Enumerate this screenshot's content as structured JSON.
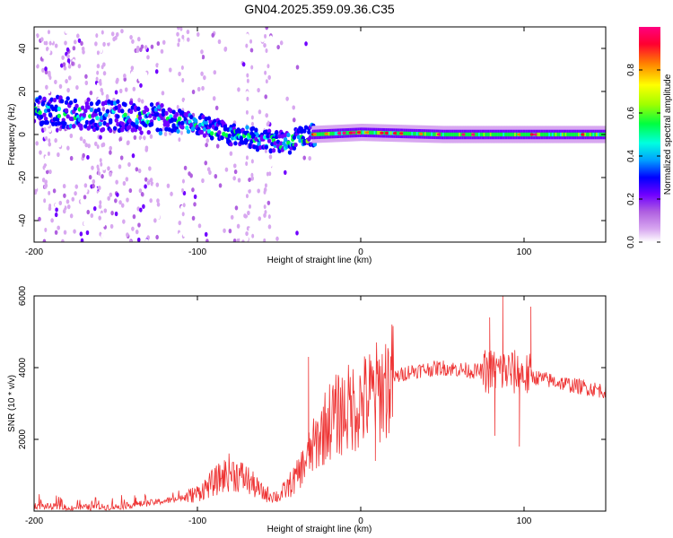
{
  "title": "GN04.2025.359.09.36.C35",
  "chart_data": [
    {
      "type": "heatmap",
      "name": "spectrogram",
      "xlabel": "Height of straight line (km)",
      "ylabel": "Frequency (Hz)",
      "xlim": [
        -200,
        150
      ],
      "ylim": [
        -50,
        50
      ],
      "xticks": [
        -200,
        -100,
        0,
        100
      ],
      "yticks": [
        -40,
        -20,
        0,
        20,
        40
      ],
      "colorbar": {
        "label": "Normalized spectral amplitude",
        "range": [
          0,
          1
        ],
        "ticks": [
          0.0,
          0.2,
          0.4,
          0.6,
          0.8
        ],
        "tick_labels": [
          "0.0",
          "0.2",
          "0.4",
          "0.6",
          "0.8"
        ],
        "colors": [
          "#ffffff",
          "#d8a8f0",
          "#b060e0",
          "#7000ff",
          "#0000ff",
          "#00a0ff",
          "#00ffe0",
          "#00ff40",
          "#a0ff00",
          "#ffff00",
          "#ff8000",
          "#ff0030",
          "#ff0080"
        ]
      },
      "ridge": [
        {
          "x": -200,
          "f": 12
        },
        {
          "x": -180,
          "f": 10
        },
        {
          "x": -160,
          "f": 9
        },
        {
          "x": -140,
          "f": 8
        },
        {
          "x": -120,
          "f": 7
        },
        {
          "x": -100,
          "f": 5
        },
        {
          "x": -80,
          "f": 0
        },
        {
          "x": -60,
          "f": -3
        },
        {
          "x": -45,
          "f": -4
        },
        {
          "x": -30,
          "f": 0
        },
        {
          "x": 0,
          "f": 1
        },
        {
          "x": 50,
          "f": 0
        },
        {
          "x": 100,
          "f": 0
        },
        {
          "x": 150,
          "f": 0
        }
      ]
    },
    {
      "type": "line",
      "name": "snr",
      "xlabel": "Height of straight line (km)",
      "ylabel": "SNR (10 * v/v)",
      "color": "#ee3333",
      "xlim": [
        -200,
        150
      ],
      "ylim": [
        0,
        6000
      ],
      "xticks": [
        -200,
        -100,
        0,
        100
      ],
      "yticks": [
        2000,
        4000,
        6000
      ],
      "envelope": [
        {
          "x": -200,
          "y": 150
        },
        {
          "x": -180,
          "y": 100
        },
        {
          "x": -150,
          "y": 120
        },
        {
          "x": -125,
          "y": 250
        },
        {
          "x": -110,
          "y": 350
        },
        {
          "x": -100,
          "y": 500
        },
        {
          "x": -90,
          "y": 800
        },
        {
          "x": -80,
          "y": 1100
        },
        {
          "x": -70,
          "y": 900
        },
        {
          "x": -60,
          "y": 500
        },
        {
          "x": -50,
          "y": 400
        },
        {
          "x": -40,
          "y": 900
        },
        {
          "x": -30,
          "y": 1700
        },
        {
          "x": -20,
          "y": 2500
        },
        {
          "x": -10,
          "y": 2800
        },
        {
          "x": 0,
          "y": 3000
        },
        {
          "x": 10,
          "y": 3300
        },
        {
          "x": 20,
          "y": 3700
        },
        {
          "x": 30,
          "y": 3900
        },
        {
          "x": 50,
          "y": 4000
        },
        {
          "x": 70,
          "y": 3900
        },
        {
          "x": 90,
          "y": 3900
        },
        {
          "x": 110,
          "y": 3700
        },
        {
          "x": 130,
          "y": 3500
        },
        {
          "x": 150,
          "y": 3350
        }
      ],
      "peaks": [
        {
          "x": -32,
          "y": 4300
        },
        {
          "x": 87,
          "y": 6000
        },
        {
          "x": 79,
          "y": 5400
        },
        {
          "x": 104,
          "y": 5700
        },
        {
          "x": 82,
          "y": 2100
        },
        {
          "x": 97,
          "y": 1800
        },
        {
          "x": 9,
          "y": 1400
        }
      ]
    }
  ]
}
